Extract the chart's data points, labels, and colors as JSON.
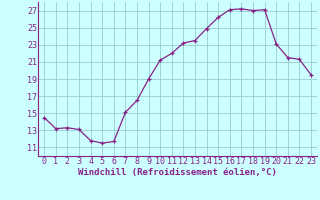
{
  "x": [
    0,
    1,
    2,
    3,
    4,
    5,
    6,
    7,
    8,
    9,
    10,
    11,
    12,
    13,
    14,
    15,
    16,
    17,
    18,
    19,
    20,
    21,
    22,
    23
  ],
  "y": [
    14.5,
    13.2,
    13.3,
    13.1,
    11.8,
    11.5,
    11.7,
    15.1,
    16.5,
    19.0,
    21.2,
    22.0,
    23.2,
    23.5,
    24.9,
    26.2,
    27.1,
    27.2,
    27.0,
    27.1,
    23.1,
    21.5,
    21.3,
    19.5
  ],
  "line_color": "#882288",
  "marker": "+",
  "marker_color": "#882288",
  "bg_color": "#ccffff",
  "grid_color": "#99cccc",
  "xlabel": "Windchill (Refroidissement éolien,°C)",
  "xlabel_color": "#882288",
  "tick_color": "#882288",
  "ylim": [
    10,
    28
  ],
  "yticks": [
    11,
    13,
    15,
    17,
    19,
    21,
    23,
    25,
    27
  ],
  "xticks": [
    0,
    1,
    2,
    3,
    4,
    5,
    6,
    7,
    8,
    9,
    10,
    11,
    12,
    13,
    14,
    15,
    16,
    17,
    18,
    19,
    20,
    21,
    22,
    23
  ],
  "xlim": [
    -0.5,
    23.5
  ],
  "font_size": 6,
  "xlabel_fontsize": 6.5
}
